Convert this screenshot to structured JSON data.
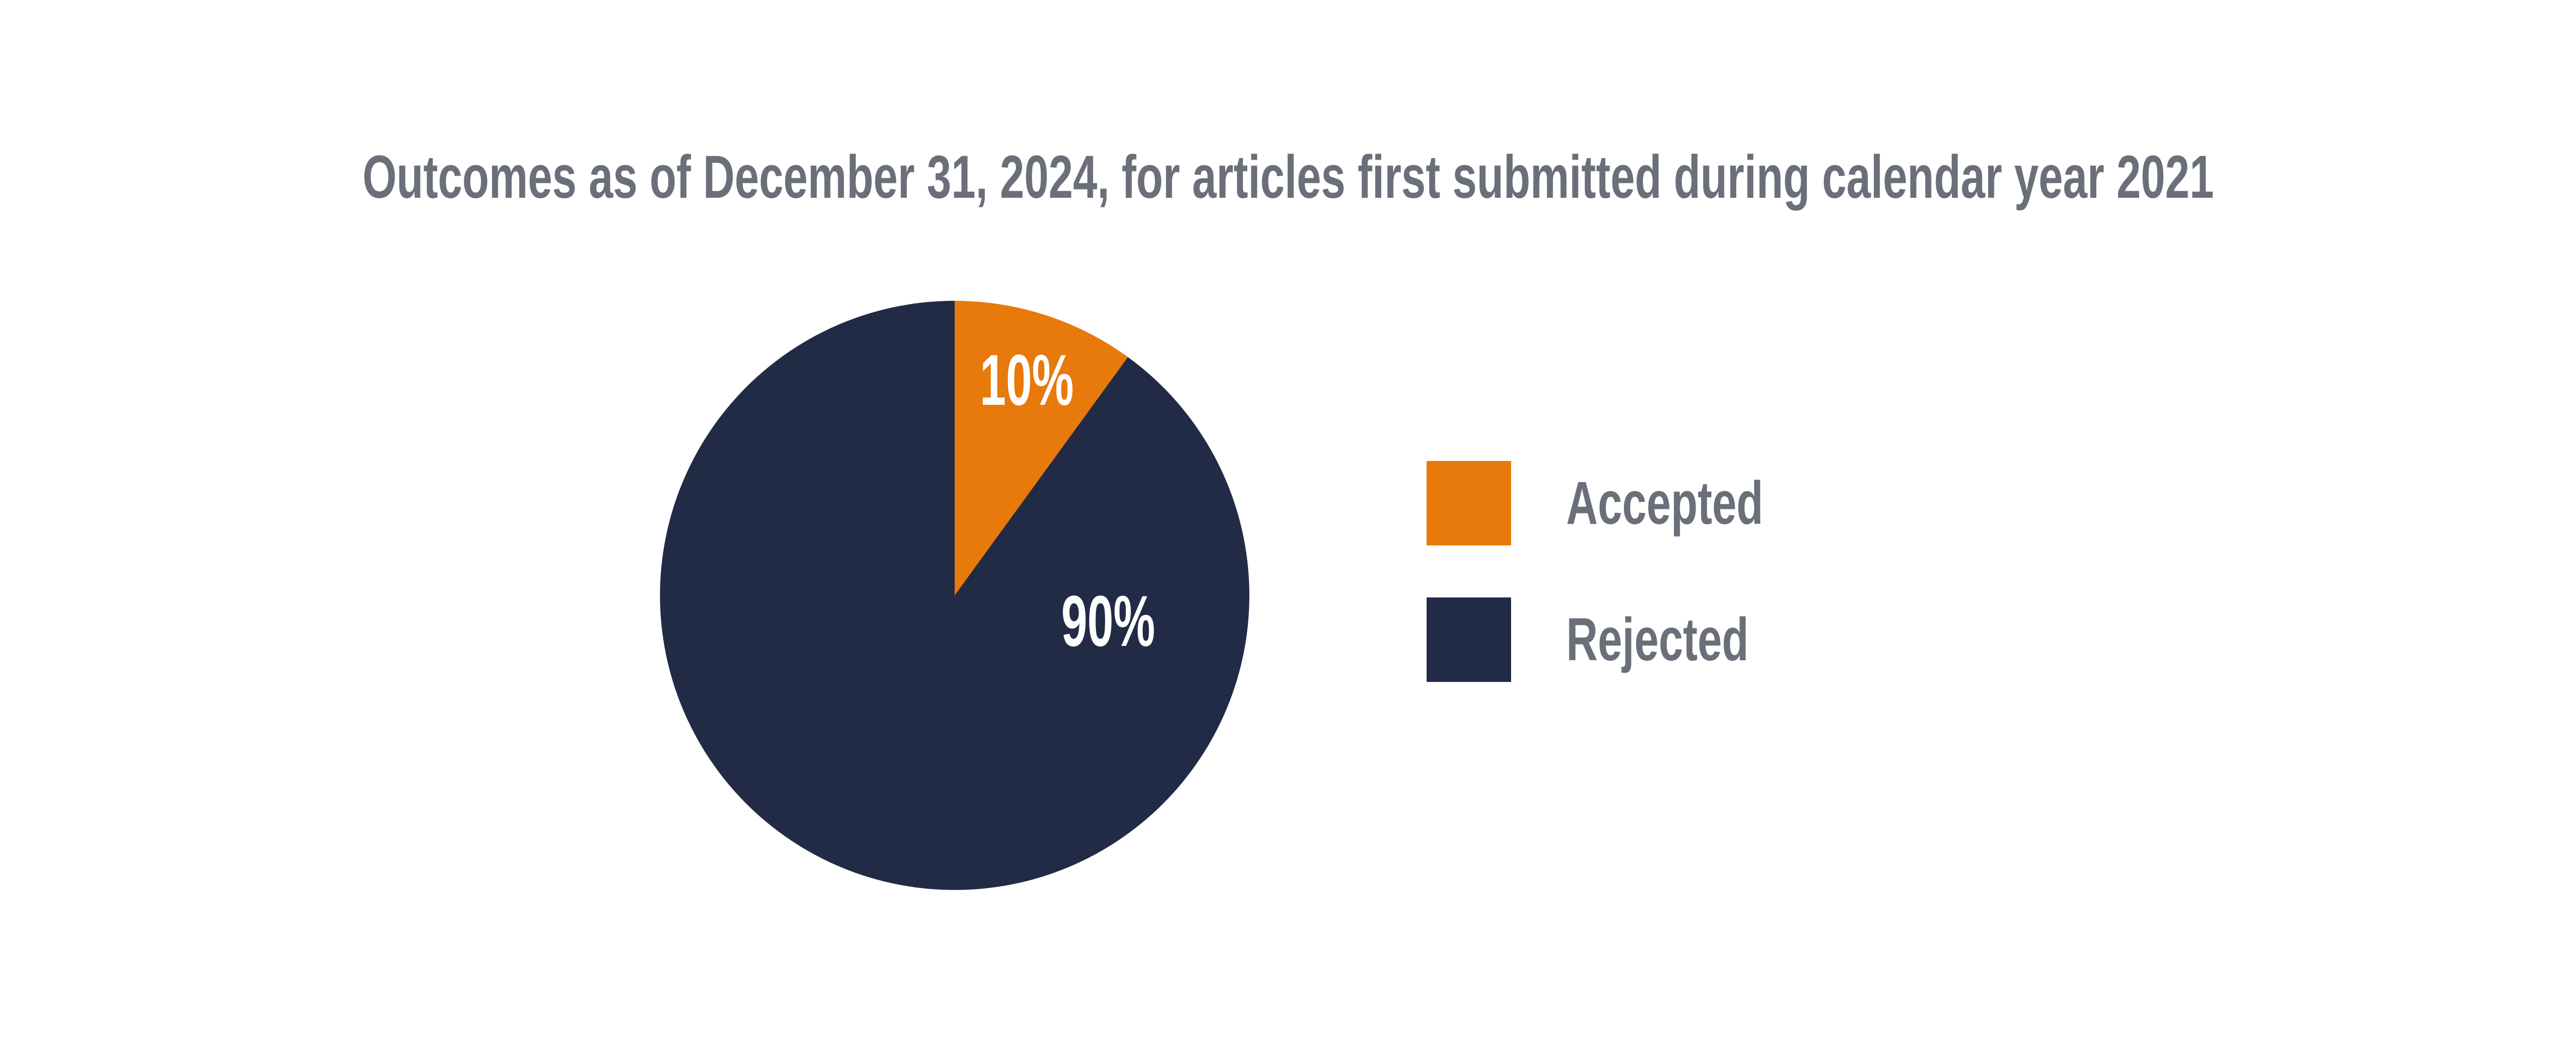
{
  "title": "Outcomes as of December 31, 2024, for articles first submitted during calendar year 2021",
  "colors": {
    "accepted": "#E8790B",
    "rejected": "#222B46",
    "title_text": "#6A6F7A",
    "slice_label_text": "#FFFFFF",
    "background": "#FFFFFF"
  },
  "chart_data": {
    "type": "pie",
    "title": "Outcomes as of December 31, 2024, for articles first submitted during calendar year 2021",
    "start_angle": "12 o'clock, clockwise",
    "grid": false,
    "legend_position": "right",
    "slices": [
      {
        "label": "Accepted",
        "value": 10,
        "percent_label": "10%",
        "color": "#E8790B"
      },
      {
        "label": "Rejected",
        "value": 90,
        "percent_label": "90%",
        "color": "#222B46"
      }
    ]
  },
  "legend": {
    "items": [
      {
        "label": "Accepted",
        "color": "#E8790B"
      },
      {
        "label": "Rejected",
        "color": "#222B46"
      }
    ]
  }
}
